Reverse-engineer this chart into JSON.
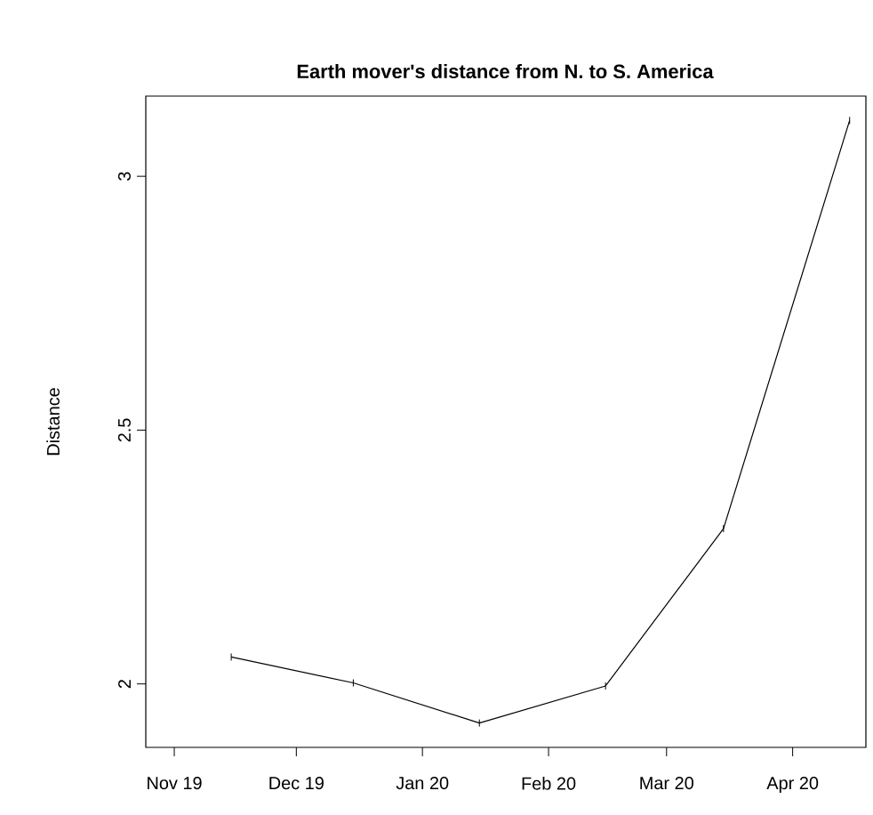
{
  "chart_data": {
    "type": "line",
    "title": "Earth mover's distance from N. to S. America",
    "ylabel": "Distance",
    "x": [
      "2019-11-15",
      "2019-12-15",
      "2020-01-15",
      "2020-02-15",
      "2020-03-15",
      "2020-04-15"
    ],
    "series": [
      {
        "color": "#000000",
        "values": [
          2.053,
          2.002,
          1.923,
          1.996,
          2.306,
          3.11
        ],
        "errors": [
          0.007,
          0.007,
          0.007,
          0.007,
          0.007,
          0.007
        ]
      }
    ],
    "xlim": [
      "2019-10-25",
      "2020-04-19"
    ],
    "xticks": [
      {
        "value": "2019-11-01",
        "label": "Nov 19"
      },
      {
        "value": "2019-12-01",
        "label": "Dec 19"
      },
      {
        "value": "2020-01-01",
        "label": "Jan 20"
      },
      {
        "value": "2020-02-01",
        "label": "Feb 20"
      },
      {
        "value": "2020-03-01",
        "label": "Mar 20"
      },
      {
        "value": "2020-04-01",
        "label": "Apr 20"
      }
    ],
    "ylim": [
      1.875,
      3.158
    ],
    "yticks": [
      2,
      2.5,
      3
    ],
    "marker": "none",
    "line_style": "solid"
  }
}
